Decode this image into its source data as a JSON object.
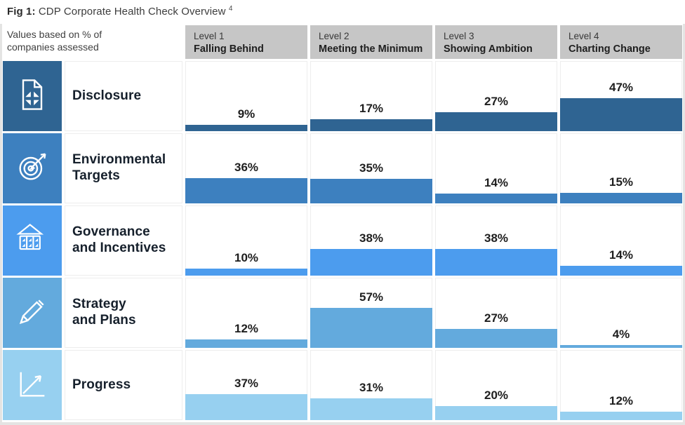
{
  "title": {
    "prefix": "Fig 1:",
    "text": " CDP Corporate Health Check Overview",
    "superscript": "4"
  },
  "axis_note": "Values based on % of companies assessed",
  "columns": [
    {
      "level": "Level 1",
      "name": "Falling Behind"
    },
    {
      "level": "Level 2",
      "name": "Meeting the Minimum"
    },
    {
      "level": "Level 3",
      "name": "Showing Ambition"
    },
    {
      "level": "Level 4",
      "name": "Charting Change"
    }
  ],
  "rows": [
    {
      "category": "Disclosure",
      "category_lines": [
        "Disclosure"
      ],
      "icon": "document-compress-icon",
      "color": "#2f6492",
      "labels": [
        "9%",
        "17%",
        "27%",
        "47%"
      ]
    },
    {
      "category": "Environmental Targets",
      "category_lines": [
        "Environmental",
        "Targets"
      ],
      "icon": "target-arrow-icon",
      "color": "#3d80bf",
      "labels": [
        "36%",
        "35%",
        "14%",
        "15%"
      ]
    },
    {
      "category": "Governance and Incentives",
      "category_lines": [
        "Governance",
        "and Incentives"
      ],
      "icon": "bank-icon",
      "color": "#4c9cee",
      "labels": [
        "10%",
        "38%",
        "38%",
        "14%"
      ]
    },
    {
      "category": "Strategy and Plans",
      "category_lines": [
        "Strategy",
        "and Plans"
      ],
      "icon": "pencil-icon",
      "color": "#63aadd",
      "labels": [
        "12%",
        "57%",
        "27%",
        "4%"
      ]
    },
    {
      "category": "Progress",
      "category_lines": [
        "Progress"
      ],
      "icon": "line-chart-icon",
      "color": "#97d0f0",
      "labels": [
        "37%",
        "31%",
        "20%",
        "12%"
      ]
    }
  ],
  "chart_data": {
    "type": "bar",
    "title": "Fig 1: CDP Corporate Health Check Overview",
    "footnote_marker": "4",
    "subtitle": "Values based on % of companies assessed",
    "categories": [
      "Level 1 — Falling Behind",
      "Level 2 — Meeting the Minimum",
      "Level 3 — Showing Ambition",
      "Level 4 — Charting Change"
    ],
    "series": [
      {
        "name": "Disclosure",
        "values": [
          9,
          17,
          27,
          47
        ]
      },
      {
        "name": "Environmental Targets",
        "values": [
          36,
          35,
          14,
          15
        ]
      },
      {
        "name": "Governance and Incentives",
        "values": [
          10,
          38,
          38,
          14
        ]
      },
      {
        "name": "Strategy and Plans",
        "values": [
          12,
          57,
          27,
          4
        ]
      },
      {
        "name": "Progress",
        "values": [
          37,
          31,
          20,
          12
        ]
      }
    ],
    "unit": "%",
    "value_axis_range": [
      0,
      60
    ],
    "grid": false,
    "legend": false,
    "row_colors": [
      "#2f6492",
      "#3d80bf",
      "#4c9cee",
      "#63aadd",
      "#97d0f0"
    ]
  },
  "colors": {
    "header_bg": "#c6c6c6",
    "page_bg": "#ffffff",
    "edge": "#e4e4e3",
    "text_dark": "#16202c"
  }
}
